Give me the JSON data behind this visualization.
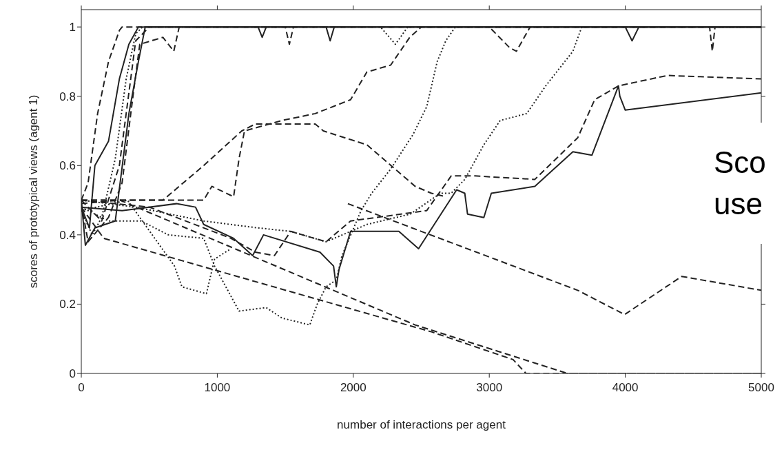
{
  "chart_data": {
    "type": "line",
    "xlabel": "number of interactions per agent",
    "ylabel": "scores of prototypical views (agent 1)",
    "xlim": [
      0,
      5000
    ],
    "xticks": [
      0,
      1000,
      2000,
      3000,
      4000,
      5000
    ],
    "ylim": [
      0,
      1.05
    ],
    "yticks": [
      0,
      0.2,
      0.4,
      0.6,
      0.8,
      1
    ],
    "annotations": [
      "Sco",
      "use"
    ],
    "series": [
      {
        "color": "#222222",
        "line_style": "dashed",
        "x": [
          0,
          50,
          120,
          200,
          280,
          300,
          1500,
          1530,
          1560,
          5000
        ],
        "values": [
          0.5,
          0.55,
          0.75,
          0.9,
          0.99,
          1,
          1,
          0.95,
          1,
          1
        ]
      },
      {
        "color": "#222222",
        "line_style": "solid",
        "x": [
          0,
          60,
          100,
          200,
          280,
          350,
          420,
          1300,
          1330,
          1360,
          5000
        ],
        "values": [
          0.48,
          0.42,
          0.6,
          0.67,
          0.85,
          0.95,
          1,
          1,
          0.97,
          1,
          1
        ]
      },
      {
        "color": "#222222",
        "line_style": "dotted",
        "x": [
          0,
          80,
          150,
          250,
          330,
          400,
          450,
          2200,
          2310,
          2400,
          5000
        ],
        "values": [
          0.47,
          0.4,
          0.45,
          0.62,
          0.85,
          0.98,
          1,
          1,
          0.95,
          1,
          1
        ]
      },
      {
        "color": "#222222",
        "line_style": "dashed",
        "x": [
          0,
          50,
          200,
          300,
          380,
          430,
          600,
          680,
          720,
          3000,
          3150,
          3200,
          3300,
          5000
        ],
        "values": [
          0.49,
          0.38,
          0.45,
          0.55,
          0.8,
          0.95,
          0.97,
          0.93,
          1,
          1,
          0.94,
          0.93,
          1,
          1
        ]
      },
      {
        "color": "#222222",
        "line_style": "solid",
        "x": [
          0,
          30,
          100,
          250,
          350,
          420,
          470,
          1800,
          1830,
          1860,
          4000,
          4050,
          4100,
          5000
        ],
        "values": [
          0.5,
          0.37,
          0.42,
          0.44,
          0.75,
          0.9,
          1,
          1,
          0.96,
          1,
          1,
          0.96,
          1,
          1
        ]
      },
      {
        "color": "#222222",
        "line_style": "dashed",
        "x": [
          0,
          150,
          280,
          400,
          500,
          4620,
          4640,
          4660,
          5000
        ],
        "values": [
          0.5,
          0.44,
          0.6,
          0.96,
          1,
          1,
          0.93,
          1,
          1
        ]
      },
      {
        "color": "#222222",
        "line_style": "dashed",
        "x": [
          0,
          600,
          900,
          960,
          1120,
          1160,
          1200,
          1475,
          1720,
          1980,
          2100,
          2275,
          2415,
          2500,
          5000
        ],
        "values": [
          0.5,
          0.5,
          0.5,
          0.54,
          0.51,
          0.62,
          0.7,
          0.73,
          0.75,
          0.79,
          0.87,
          0.89,
          0.97,
          1,
          1
        ]
      },
      {
        "color": "#222222",
        "line_style": "dotted",
        "x": [
          0,
          200,
          440,
          640,
          900,
          980,
          1160,
          1360,
          1475,
          1680,
          1735,
          1800,
          1875,
          1917,
          2057,
          2135,
          2275,
          2440,
          2540,
          2617,
          2680,
          2750,
          5000
        ],
        "values": [
          0.48,
          0.44,
          0.44,
          0.4,
          0.39,
          0.31,
          0.18,
          0.19,
          0.16,
          0.14,
          0.2,
          0.25,
          0.27,
          0.34,
          0.47,
          0.52,
          0.59,
          0.69,
          0.77,
          0.9,
          0.96,
          1,
          1
        ]
      },
      {
        "color": "#222222",
        "line_style": "dashed",
        "x": [
          0,
          600,
          900,
          1180,
          1280,
          1720,
          1780,
          2100,
          2455,
          2575,
          2680
        ],
        "values": [
          0.5,
          0.5,
          0.6,
          0.7,
          0.72,
          0.72,
          0.7,
          0.66,
          0.54,
          0.52,
          0.51
        ]
      },
      {
        "color": "#222222",
        "line_style": "dashed",
        "x": [
          1960,
          2500,
          3650,
          3995,
          4415,
          5000
        ],
        "values": [
          0.49,
          0.41,
          0.24,
          0.17,
          0.28,
          0.24
        ]
      },
      {
        "color": "#222222",
        "line_style": "solid",
        "x": [
          0,
          300,
          700,
          840,
          900,
          1120,
          1260,
          1340,
          1755,
          1855,
          1875,
          1895,
          1980,
          2335,
          2480,
          2760,
          2820,
          2840,
          2960,
          3015,
          3335,
          3615,
          3755,
          3950,
          3960,
          4000,
          5000
        ],
        "values": [
          0.48,
          0.47,
          0.49,
          0.48,
          0.43,
          0.39,
          0.34,
          0.4,
          0.35,
          0.31,
          0.25,
          0.3,
          0.41,
          0.41,
          0.36,
          0.53,
          0.52,
          0.46,
          0.45,
          0.52,
          0.54,
          0.64,
          0.63,
          0.83,
          0.8,
          0.76,
          0.81
        ]
      },
      {
        "color": "#222222",
        "line_style": "dashed",
        "x": [
          0,
          500,
          1100,
          1280,
          1420,
          1540,
          1800,
          1980,
          2540,
          2720,
          2895,
          3335,
          3650,
          3775,
          3950,
          4310,
          5000
        ],
        "values": [
          0.5,
          0.48,
          0.39,
          0.35,
          0.34,
          0.41,
          0.38,
          0.44,
          0.47,
          0.57,
          0.57,
          0.56,
          0.68,
          0.79,
          0.83,
          0.86,
          0.85
        ]
      },
      {
        "color": "#222222",
        "line_style": "dashed",
        "x": [
          0,
          165,
          2575,
          3175,
          3270,
          5000
        ],
        "values": [
          0.48,
          0.39,
          0.12,
          0.04,
          0,
          0
        ]
      },
      {
        "color": "#222222",
        "line_style": "dashed",
        "x": [
          0,
          285,
          2455,
          3575,
          5000
        ],
        "values": [
          0.49,
          0.5,
          0.14,
          0,
          0
        ]
      },
      {
        "color": "#222222",
        "line_style": "dotted",
        "x": [
          0,
          340,
          685,
          740,
          920,
          980,
          1100
        ],
        "values": [
          0.47,
          0.5,
          0.31,
          0.25,
          0.23,
          0.33,
          0.36
        ]
      },
      {
        "color": "#222222",
        "line_style": "dotted",
        "x": [
          0,
          400,
          900,
          1300,
          1540,
          1800,
          2100,
          2420,
          2640,
          2720,
          2820,
          2960,
          3080,
          3275,
          3415,
          3615,
          3680,
          5000
        ],
        "values": [
          0.5,
          0.48,
          0.44,
          0.42,
          0.41,
          0.38,
          0.43,
          0.46,
          0.52,
          0.52,
          0.56,
          0.66,
          0.73,
          0.75,
          0.83,
          0.93,
          1,
          1
        ]
      }
    ]
  }
}
